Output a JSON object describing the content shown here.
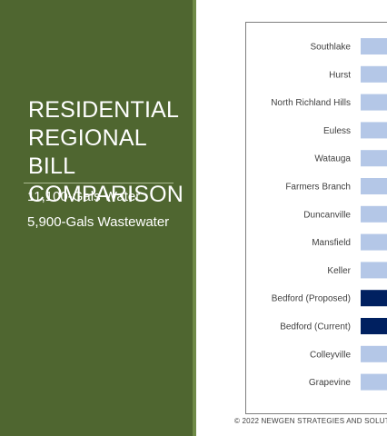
{
  "slide": {
    "title": "RESIDENTIAL\nREGIONAL BILL\nCOMPARISON",
    "subtitle_line1": "11,100-Gals Water",
    "subtitle_line2": "5,900-Gals Wastewater",
    "footer": "© 2022 NEWGEN STRATEGIES AND SOLUT"
  },
  "colors": {
    "panel": "#4f6630",
    "bar_default": "#b4c7e7",
    "bar_highlight": "#002060"
  },
  "chart_data": {
    "type": "bar",
    "orientation": "horizontal",
    "title": "",
    "xlabel": "",
    "ylabel": "",
    "categories": [
      "Southlake",
      "Hurst",
      "North Richland Hills",
      "Euless",
      "Watauga",
      "Farmers Branch",
      "Duncanville",
      "Mansfield",
      "Keller",
      "Bedford (Proposed)",
      "Bedford (Current)",
      "Colleyville",
      "Grapevine"
    ],
    "highlighted": [
      "Bedford (Proposed)",
      "Bedford (Current)"
    ],
    "values": [
      null,
      null,
      null,
      null,
      null,
      null,
      null,
      null,
      null,
      null,
      null,
      null,
      null
    ],
    "grid": false,
    "legend": "none"
  }
}
